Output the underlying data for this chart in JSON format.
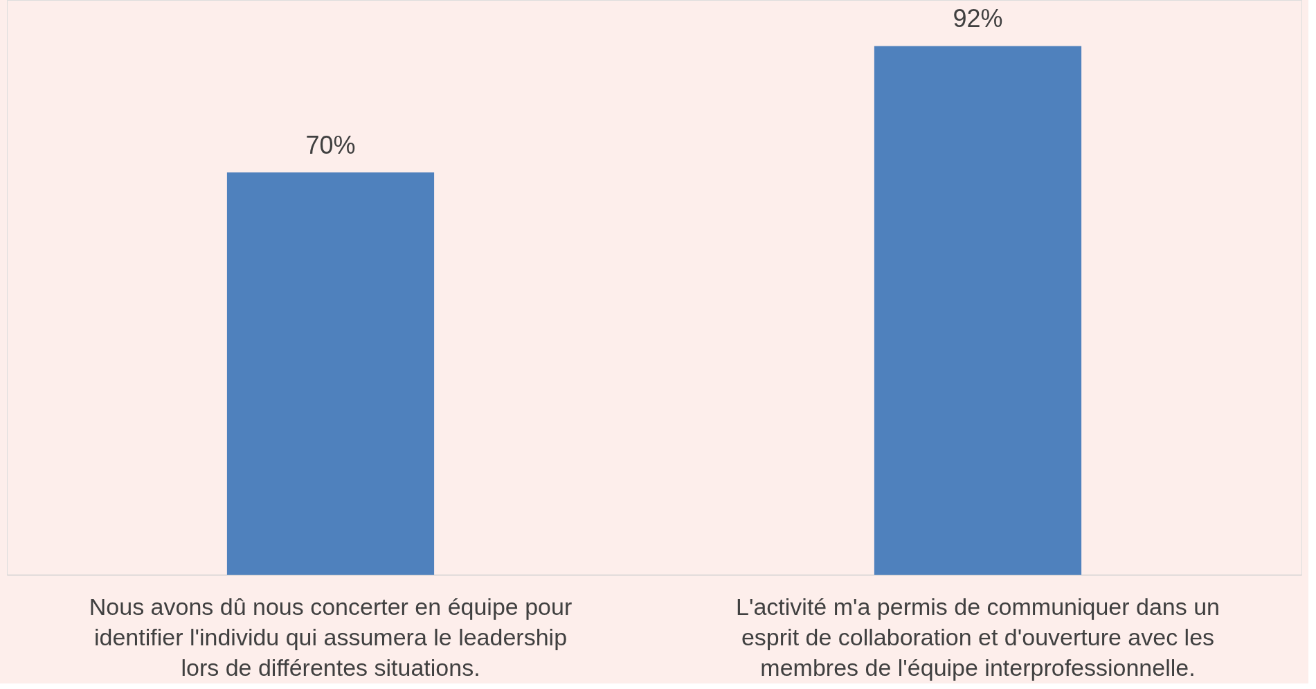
{
  "chart_data": {
    "type": "bar",
    "categories": [
      "Nous avons dû nous concerter en équipe pour identifier l'individu qui assumera le leadership lors de différentes situations.",
      "L'activité m'a permis de communiquer dans un esprit de collaboration et d'ouverture avec les membres de l'équipe interprofessionnelle."
    ],
    "values": [
      70,
      92
    ],
    "value_labels": [
      "70%",
      "92%"
    ],
    "color": "#4f81bd",
    "ylim": [
      0,
      100
    ],
    "grid": false
  }
}
